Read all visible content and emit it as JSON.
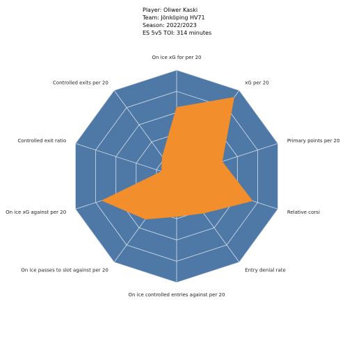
{
  "header": {
    "player": "Player: Oliwer Kaski",
    "team": "Team: Jönköping HV71",
    "season": "Season: 2022/2023",
    "toi": "ES 5v5 TOI: 314 minutes"
  },
  "chart_data": {
    "type": "radar",
    "title": "",
    "rmax": 100,
    "rings": [
      20,
      40,
      60,
      80,
      100
    ],
    "grid": true,
    "colors": {
      "background": "#4e79a7",
      "fill": "#f28e2b",
      "grid": "#d9dfe8"
    },
    "categories": [
      "On ice xG for per 20",
      "xG per 20",
      "Primary points per 20",
      "Relative corsi",
      "Entry denial rate",
      "On ice controlled entries against per 20",
      "On ice passes to slot against per 20",
      "On ice xG against per 20",
      "Controlled exit ratio",
      "Controlled exits per 20"
    ],
    "series": [
      {
        "values": [
          65,
          92,
          45,
          75,
          43,
          38,
          50,
          74,
          15,
          23
        ]
      }
    ]
  }
}
